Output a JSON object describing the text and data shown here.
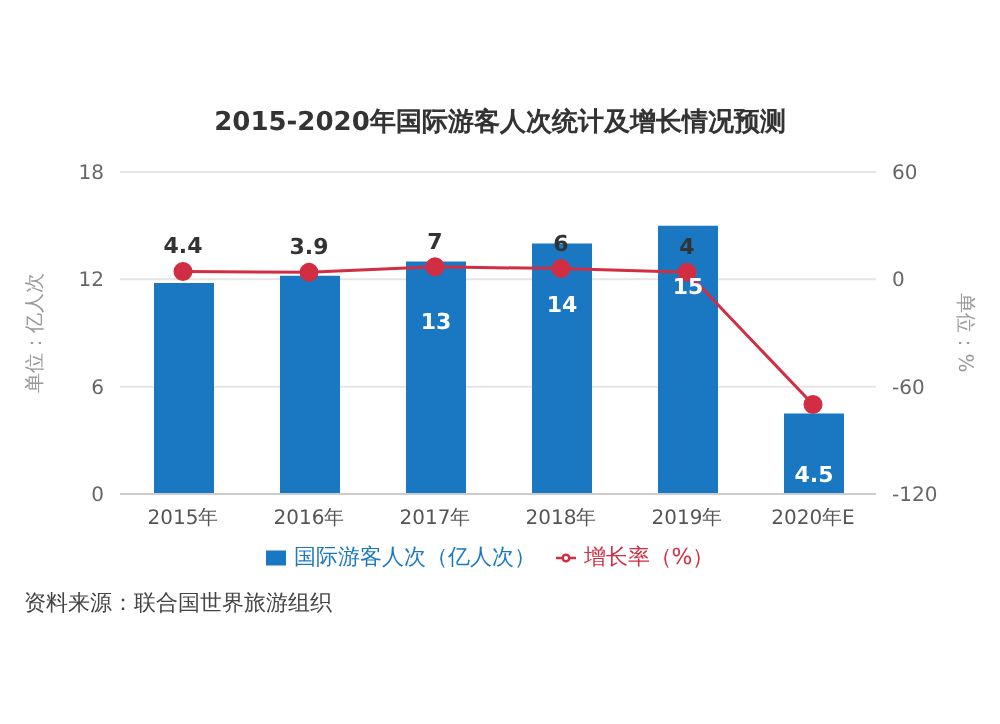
{
  "chart_data": {
    "type": "bar",
    "title": "2015-2020年国际游客人次统计及增长情况预测",
    "categories": [
      "2015年",
      "2016年",
      "2017年",
      "2018年",
      "2019年",
      "2020年E"
    ],
    "series": [
      {
        "name": "国际游客人次（亿人次）",
        "color": "#1a78c2",
        "values": [
          11.8,
          12.2,
          13,
          14,
          15,
          4.5
        ],
        "value_labels": [
          null,
          null,
          "13",
          "14",
          "15",
          "4.5"
        ]
      },
      {
        "name": "增长率（%）",
        "type": "line",
        "axis": "y2",
        "color": "#d12e43",
        "values": [
          4.4,
          3.9,
          7,
          6,
          4,
          -70
        ],
        "value_labels": [
          "4.4",
          "3.9",
          "7",
          "6",
          "4",
          null
        ],
        "marker": "circle"
      }
    ],
    "ylabel": "单位：亿人次",
    "y2label": "单位：%",
    "ylim": [
      0,
      18
    ],
    "yticks": [
      0,
      6,
      12,
      18
    ],
    "y2lim": [
      -120,
      60
    ],
    "y2ticks": [
      -120,
      -60,
      0,
      60
    ],
    "grid": "y",
    "legend": "bottom",
    "annotations": [
      "资料来源：联合国世界旅游组织"
    ]
  }
}
